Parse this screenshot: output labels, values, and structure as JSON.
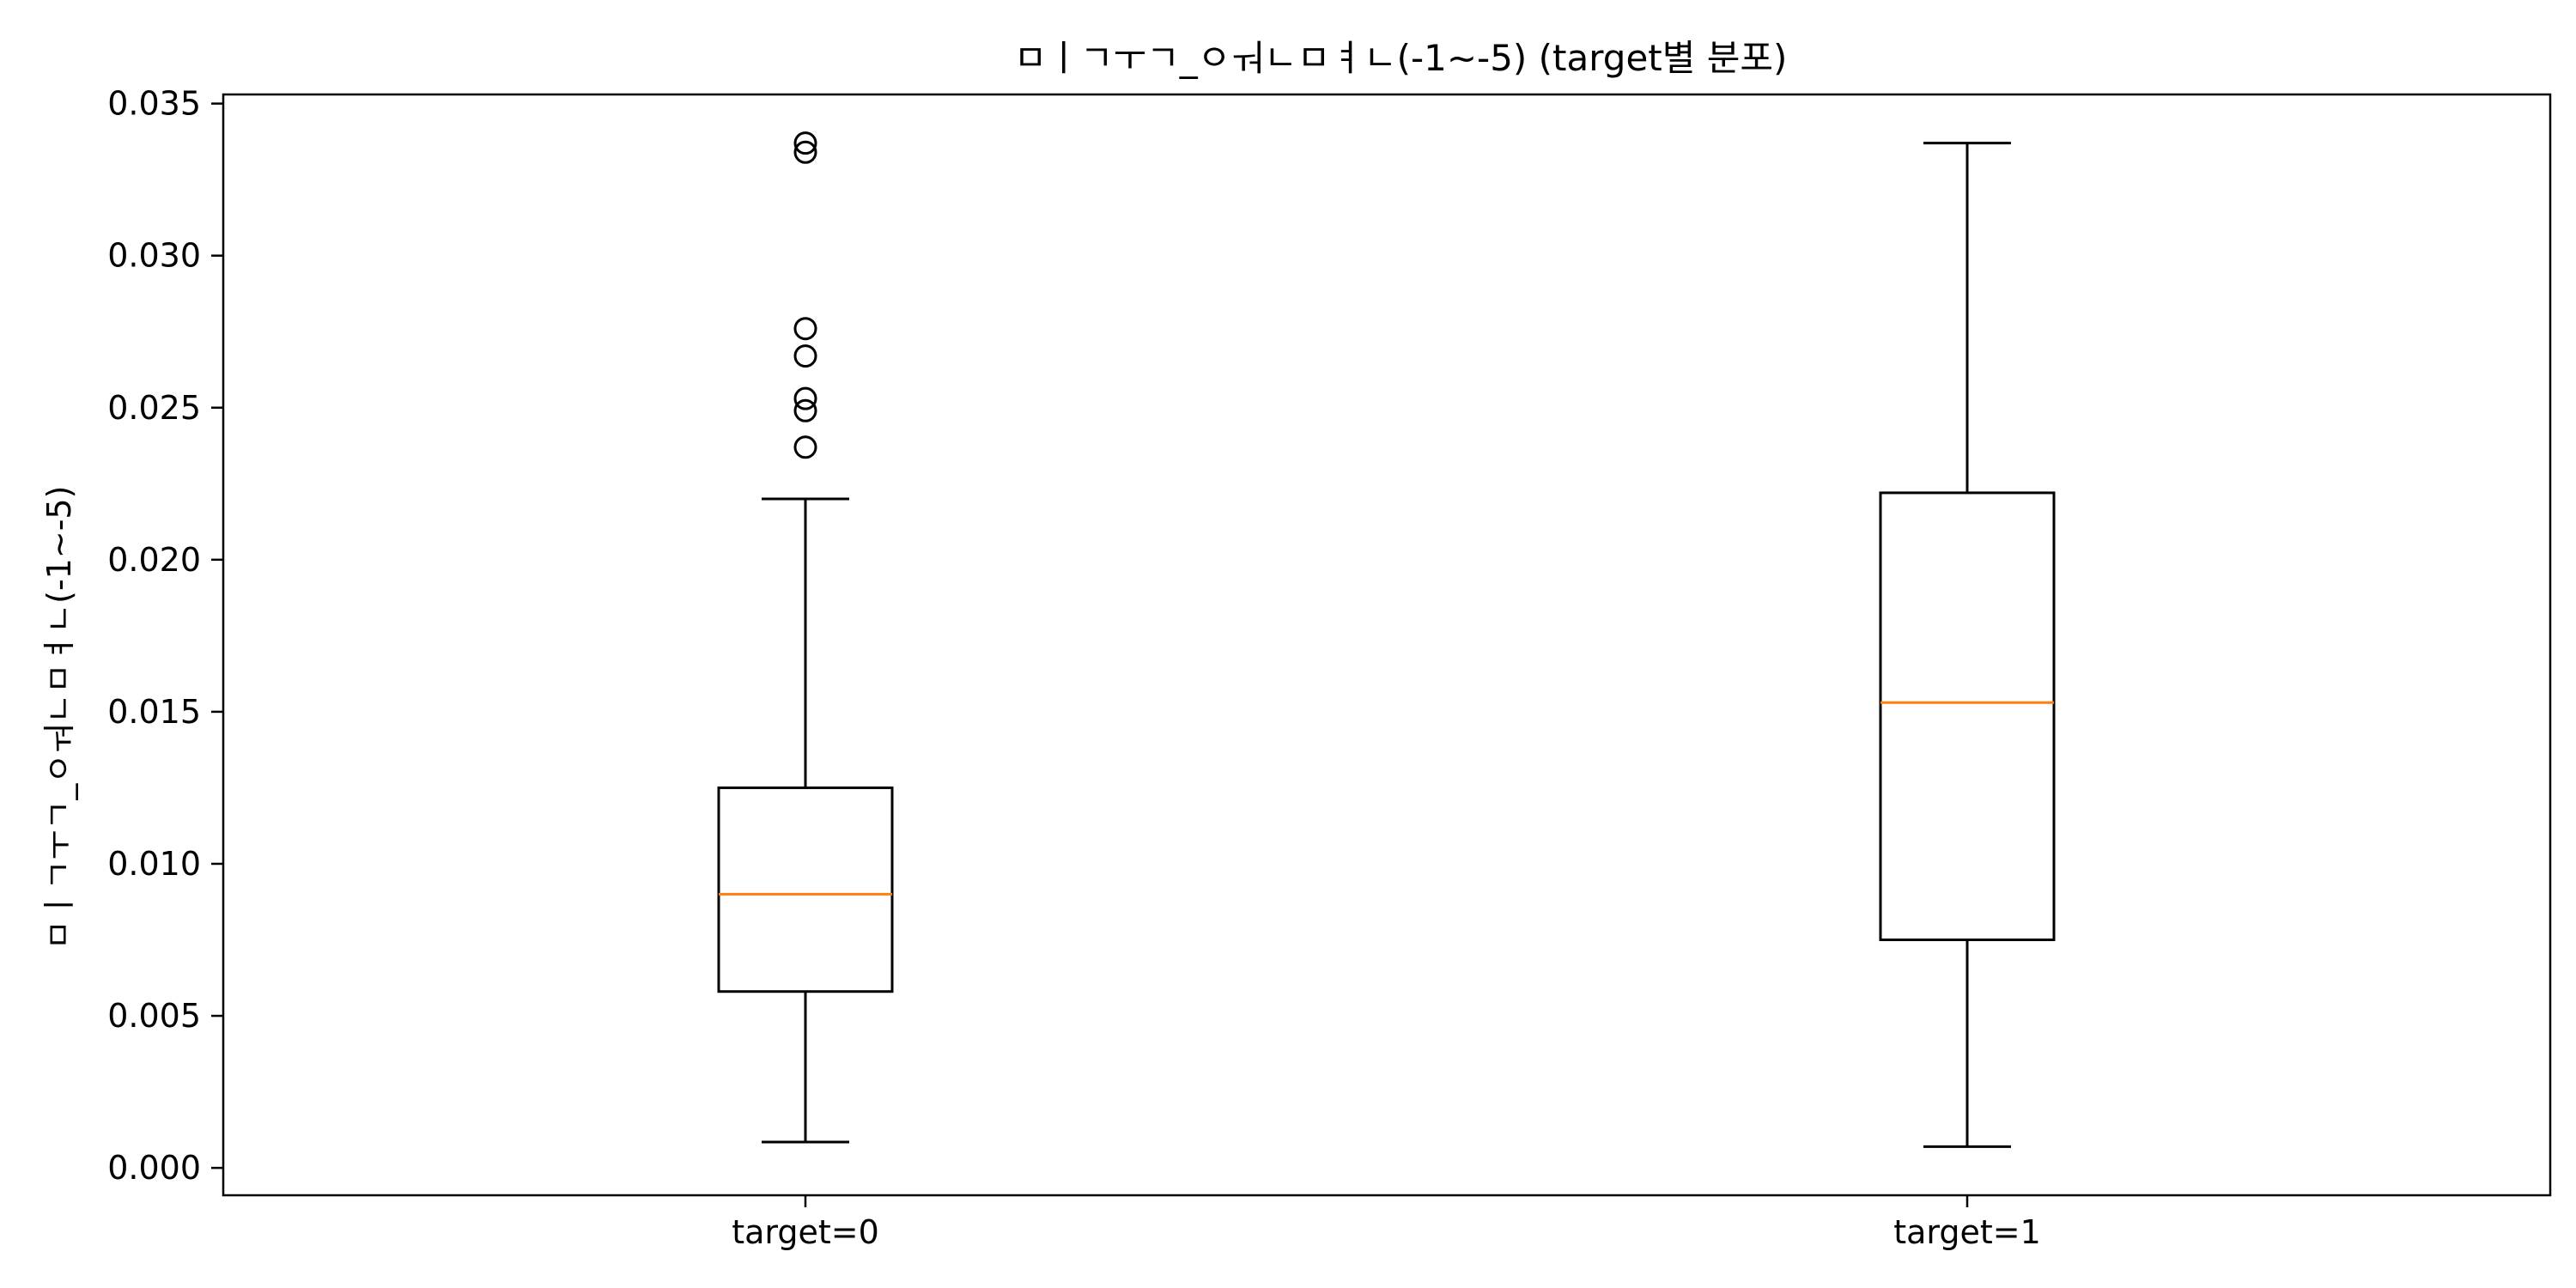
{
  "chart_data": {
    "type": "box",
    "title": "ㅁㅣㄱㅜㄱ_ㅇㅝㄴㅁㅕㄴ(-1~-5) (target별 분포)",
    "xlabel": "",
    "ylabel": "ㅁㅣㄱㅜㄱ_ㅇㅝㄴㅁㅕㄴ(-1~-5)",
    "categories": [
      "target=0",
      "target=1"
    ],
    "ylim": [
      -0.0009,
      0.0353
    ],
    "yticks": [
      0.0,
      0.005,
      0.01,
      0.015,
      0.02,
      0.025,
      0.03,
      0.035
    ],
    "ytick_labels": [
      "0.000",
      "0.005",
      "0.010",
      "0.015",
      "0.020",
      "0.025",
      "0.030",
      "0.035"
    ],
    "grid": false,
    "boxes": [
      {
        "category": "target=0",
        "whisker_low": 0.00085,
        "q1": 0.0058,
        "median": 0.009,
        "q3": 0.0125,
        "whisker_high": 0.022,
        "outliers": [
          0.0237,
          0.0249,
          0.0253,
          0.0267,
          0.0276,
          0.0334,
          0.0337
        ]
      },
      {
        "category": "target=1",
        "whisker_low": 0.0007,
        "q1": 0.0075,
        "median": 0.0153,
        "q3": 0.0222,
        "whisker_high": 0.0337,
        "outliers": []
      }
    ],
    "colors": {
      "box": "#000000",
      "median": "#ff7f0e",
      "outlier": "#000000"
    }
  }
}
